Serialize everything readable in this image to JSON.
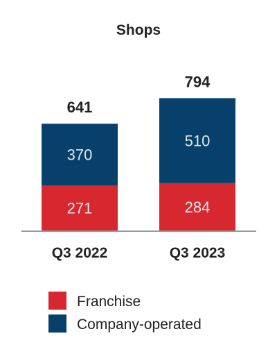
{
  "chart_data": {
    "type": "bar",
    "stacked": true,
    "title": "Shops",
    "categories": [
      "Q3 2022",
      "Q3 2023"
    ],
    "series": [
      {
        "name": "Franchise",
        "values": [
          271,
          284
        ],
        "color": "#d7282f"
      },
      {
        "name": "Company-operated",
        "values": [
          370,
          510
        ],
        "color": "#07416b"
      }
    ],
    "totals": [
      641,
      794
    ],
    "xlabel": "",
    "ylabel": "",
    "ylim": [
      0,
      900
    ],
    "grid": false,
    "legend": "bottom"
  }
}
